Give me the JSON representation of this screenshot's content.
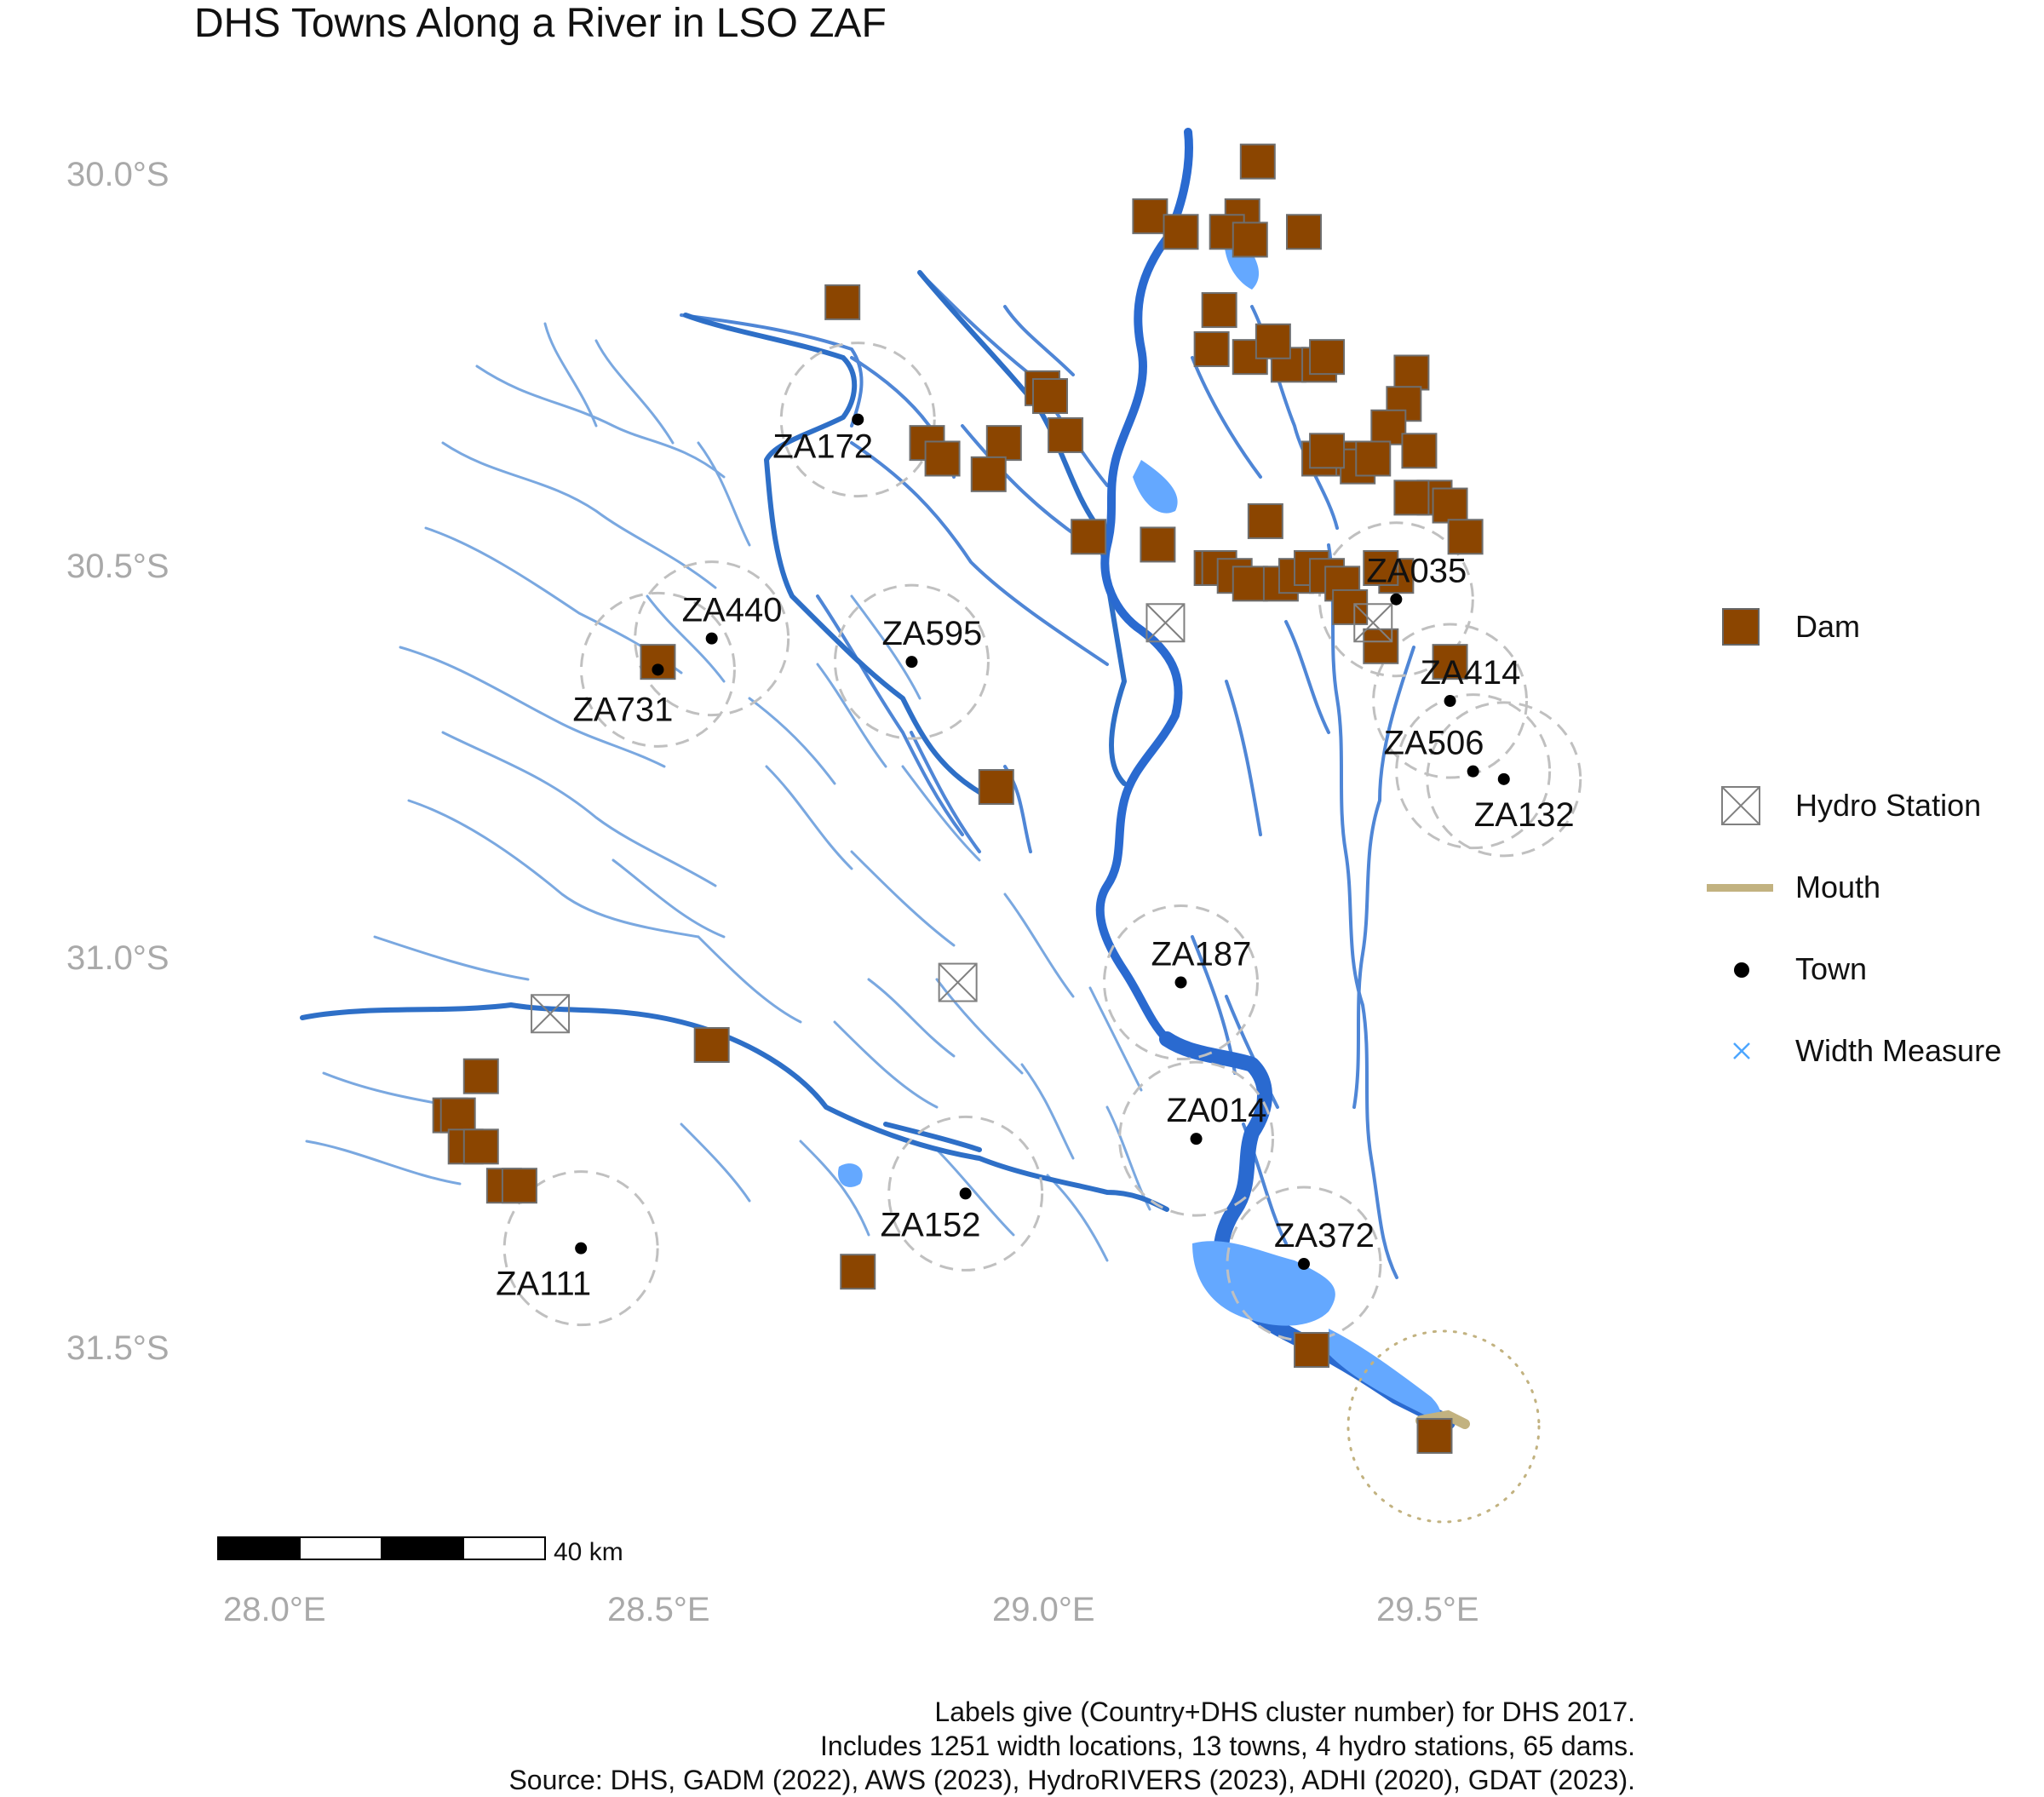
{
  "title": "DHS Towns Along a River in LSO ZAF",
  "axes": {
    "lat_ticks": [
      "30.0°S",
      "30.5°S",
      "31.0°S",
      "31.5°S"
    ],
    "lon_ticks": [
      "28.0°E",
      "28.5°E",
      "29.0°E",
      "29.5°E"
    ]
  },
  "legend": {
    "items": [
      {
        "label": "Dam",
        "icon": "dam-square-icon",
        "color": "#8B4500"
      },
      {
        "label": "Hydro Station",
        "icon": "boxed-x-icon",
        "color": "#808080"
      },
      {
        "label": "Mouth",
        "icon": "line-icon",
        "color": "#C2B280"
      },
      {
        "label": "Town",
        "icon": "dot-icon",
        "color": "#000000"
      },
      {
        "label": "Width Measure",
        "icon": "x-icon",
        "color": "#4DA6FF"
      }
    ]
  },
  "scale_bar": {
    "label": "40 km"
  },
  "towns": [
    {
      "id": "ZA172",
      "lat": -30.31,
      "lon": 28.75
    },
    {
      "id": "ZA440",
      "lat": -30.59,
      "lon": 28.56
    },
    {
      "id": "ZA595",
      "lat": -30.62,
      "lon": 28.82
    },
    {
      "id": "ZA731",
      "lat": -30.63,
      "lon": 28.49
    },
    {
      "id": "ZA035",
      "lat": -30.54,
      "lon": 29.45
    },
    {
      "id": "ZA414",
      "lat": -30.67,
      "lon": 29.52
    },
    {
      "id": "ZA506",
      "lat": -30.76,
      "lon": 29.55
    },
    {
      "id": "ZA132",
      "lat": -30.77,
      "lon": 29.59
    },
    {
      "id": "ZA187",
      "lat": -31.03,
      "lon": 29.17
    },
    {
      "id": "ZA014",
      "lat": -31.23,
      "lon": 29.19
    },
    {
      "id": "ZA152",
      "lat": -31.3,
      "lon": 28.89
    },
    {
      "id": "ZA372",
      "lat": -31.39,
      "lon": 29.33
    },
    {
      "id": "ZA111",
      "lat": -31.37,
      "lon": 28.39
    }
  ],
  "hydro_stations": [
    {
      "lat": -30.57,
      "lon": 29.15
    },
    {
      "lat": -30.57,
      "lon": 29.42
    },
    {
      "lat": -31.03,
      "lon": 28.88
    },
    {
      "lat": -31.07,
      "lon": 28.35
    }
  ],
  "mouth": {
    "lat": -31.6,
    "lon": 29.52
  },
  "caption": [
    "Labels give (Country+DHS cluster number) for DHS 2017.",
    "Includes 1251 width locations, 13 towns, 4 hydro stations, 65 dams.",
    "Source: DHS, GADM (2022), AWS (2023), HydroRIVERS (2023), ADHI (2020), GDAT (2023)."
  ]
}
